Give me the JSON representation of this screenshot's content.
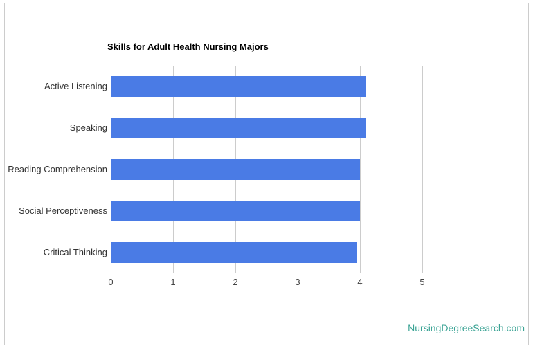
{
  "page": {
    "background": "#ffffff",
    "border_color": "#cccccc"
  },
  "chart_data": {
    "type": "bar",
    "orientation": "horizontal",
    "title": "Skills for Adult Health Nursing Majors",
    "categories": [
      "Active Listening",
      "Speaking",
      "Reading Comprehension",
      "Social Perceptiveness",
      "Critical Thinking"
    ],
    "values": [
      4.1,
      4.1,
      4.0,
      4.0,
      3.95
    ],
    "xlabel": "",
    "ylabel": "",
    "xlim": [
      0,
      5
    ],
    "x_ticks": [
      0,
      1,
      2,
      3,
      4,
      5
    ],
    "bar_color": "#4a7be5",
    "gridline_color": "#cccccc",
    "grid": "vertical",
    "legend": "none"
  },
  "footer": {
    "link_text": "NursingDegreeSearch.com",
    "link_color": "#3aa394"
  }
}
